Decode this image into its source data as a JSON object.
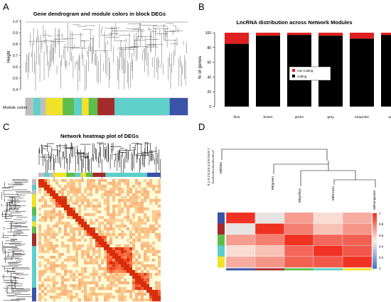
{
  "panels": {
    "A": {
      "letter": "A",
      "title": "Gene dendrogram and module colors in block DEGs",
      "ylabel": "Height",
      "row_label": "Module colors",
      "y_ticks": [
        "0.4",
        "0.5",
        "0.6",
        "0.7",
        "0.8",
        "0.9",
        "1.0"
      ]
    },
    "B": {
      "letter": "B",
      "title": "LncRNA distribution across Network Modules",
      "ylabel": "% of genes",
      "y_ticks": [
        "0",
        "20",
        "40",
        "60",
        "80",
        "100"
      ],
      "legend": [
        "non-coding",
        "coding"
      ],
      "legend_colors": [
        "#e02020",
        "#000000"
      ]
    },
    "C": {
      "letter": "C",
      "title": "Network heatmap plot of DEGs"
    },
    "D": {
      "letter": "D",
      "y_ticks": [
        "0.1",
        "0.2",
        "0.3",
        "0.4",
        "0.5",
        "0.6",
        "0.7"
      ],
      "leaves": [
        "MEblue",
        "MEgreen",
        "MEyellow",
        "MEbrown",
        "MEturquoise"
      ],
      "colorbar_ticks": [
        "1",
        "0.8",
        "0.6",
        "0.4",
        "0.2",
        "0"
      ]
    }
  },
  "colors": {
    "blue": "#3a52a8",
    "brown": "#a52a2a",
    "green": "#5cbd4c",
    "grey": "#bebebe",
    "turquoise": "#5ecfc9",
    "yellow": "#f2e22a",
    "noncoding": "#e02020",
    "coding": "#000000"
  },
  "module_strip": [
    {
      "color": "grey",
      "w": 1.4
    },
    {
      "color": "turquoise",
      "w": 1.2
    },
    {
      "color": "grey",
      "w": 1
    },
    {
      "color": "yellow",
      "w": 3
    },
    {
      "color": "green",
      "w": 2
    },
    {
      "color": "turquoise",
      "w": 1.4
    },
    {
      "color": "yellow",
      "w": 1.2
    },
    {
      "color": "green",
      "w": 1.6
    },
    {
      "color": "brown",
      "w": 3
    },
    {
      "color": "turquoise",
      "w": 5.8
    },
    {
      "color": "turquoise",
      "w": 4
    },
    {
      "color": "blue",
      "w": 3.2
    }
  ],
  "chart_data": [
    {
      "panel": "B",
      "type": "bar",
      "title": "LncRNA distribution across Network Modules",
      "ylabel": "% of genes",
      "ylim": [
        0,
        100
      ],
      "categories": [
        "blue",
        "brown",
        "green",
        "grey",
        "turquoise",
        "yellow"
      ],
      "series": [
        {
          "name": "coding",
          "values": [
            85,
            96,
            97,
            96,
            92,
            97
          ]
        },
        {
          "name": "non-coding",
          "values": [
            15,
            4,
            3,
            4,
            8,
            3
          ]
        }
      ],
      "stacked": true,
      "legend_position": "center-right"
    },
    {
      "panel": "D",
      "type": "heatmap",
      "rows": [
        "blue",
        "brown",
        "green",
        "turquoise",
        "yellow"
      ],
      "columns": [
        "blue",
        "brown",
        "green",
        "turquoise",
        "yellow"
      ],
      "values": [
        [
          1.0,
          0.45,
          0.72,
          0.55,
          0.68
        ],
        [
          0.45,
          1.0,
          0.8,
          0.62,
          0.74
        ],
        [
          0.72,
          0.8,
          1.0,
          0.86,
          0.88
        ],
        [
          0.55,
          0.62,
          0.86,
          1.0,
          0.9
        ],
        [
          0.68,
          0.74,
          0.88,
          0.9,
          1.0
        ]
      ],
      "colorbar_range": [
        0,
        1
      ]
    },
    {
      "panel": "D",
      "type": "dendrogram",
      "leaves": [
        "MEblue",
        "MEgreen",
        "MEyellow",
        "MEbrown",
        "MEturquoise"
      ],
      "ylim": [
        0.1,
        0.7
      ]
    }
  ]
}
